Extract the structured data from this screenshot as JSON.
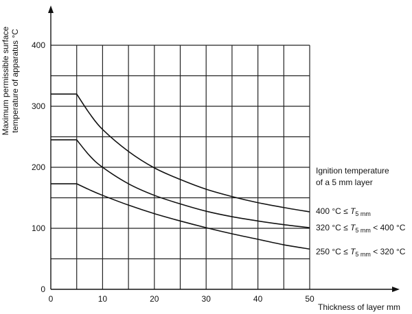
{
  "chart_data": {
    "type": "line",
    "title": "",
    "xlabel": "Thickness of layer   mm",
    "ylabel_line1": "Maximum permissible surface",
    "ylabel_line2": "temperature of apparatus  °C",
    "xlim": [
      0,
      50
    ],
    "ylim": [
      0,
      400
    ],
    "x_ticks": [
      0,
      10,
      20,
      30,
      40,
      50
    ],
    "y_ticks": [
      0,
      100,
      200,
      300,
      400
    ],
    "x_grid_step": 5,
    "y_grid_step": 50,
    "grid": true,
    "legend_title_line1": "Ignition temperature",
    "legend_title_line2": "of a 5 mm layer",
    "series": [
      {
        "label_prefix": "400 °C ≤ ",
        "label_var": "T",
        "label_sub": "5 mm",
        "label_suffix": "",
        "x": [
          0,
          5,
          7.5,
          10,
          15,
          20,
          25,
          30,
          35,
          40,
          45,
          50
        ],
        "y": [
          320,
          320,
          288,
          262,
          226,
          199,
          180,
          164,
          152,
          142,
          134,
          127
        ]
      },
      {
        "label_prefix": "320 °C ≤ ",
        "label_var": "T",
        "label_sub": "5 mm",
        "label_suffix": " < 400 °C",
        "x": [
          0,
          5,
          7.5,
          10,
          15,
          20,
          25,
          30,
          35,
          40,
          45,
          50
        ],
        "y": [
          245,
          245,
          219,
          200,
          173,
          154,
          140,
          128,
          119,
          112,
          106,
          101
        ]
      },
      {
        "label_prefix": "250 °C ≤ ",
        "label_var": "T",
        "label_sub": "5 mm",
        "label_suffix": " < 320 °C",
        "x": [
          0,
          5,
          7.5,
          10,
          15,
          20,
          25,
          30,
          35,
          40,
          45,
          50
        ],
        "y": [
          173,
          173,
          163,
          154,
          138,
          124,
          112,
          101,
          91,
          82,
          73,
          66
        ]
      }
    ]
  }
}
